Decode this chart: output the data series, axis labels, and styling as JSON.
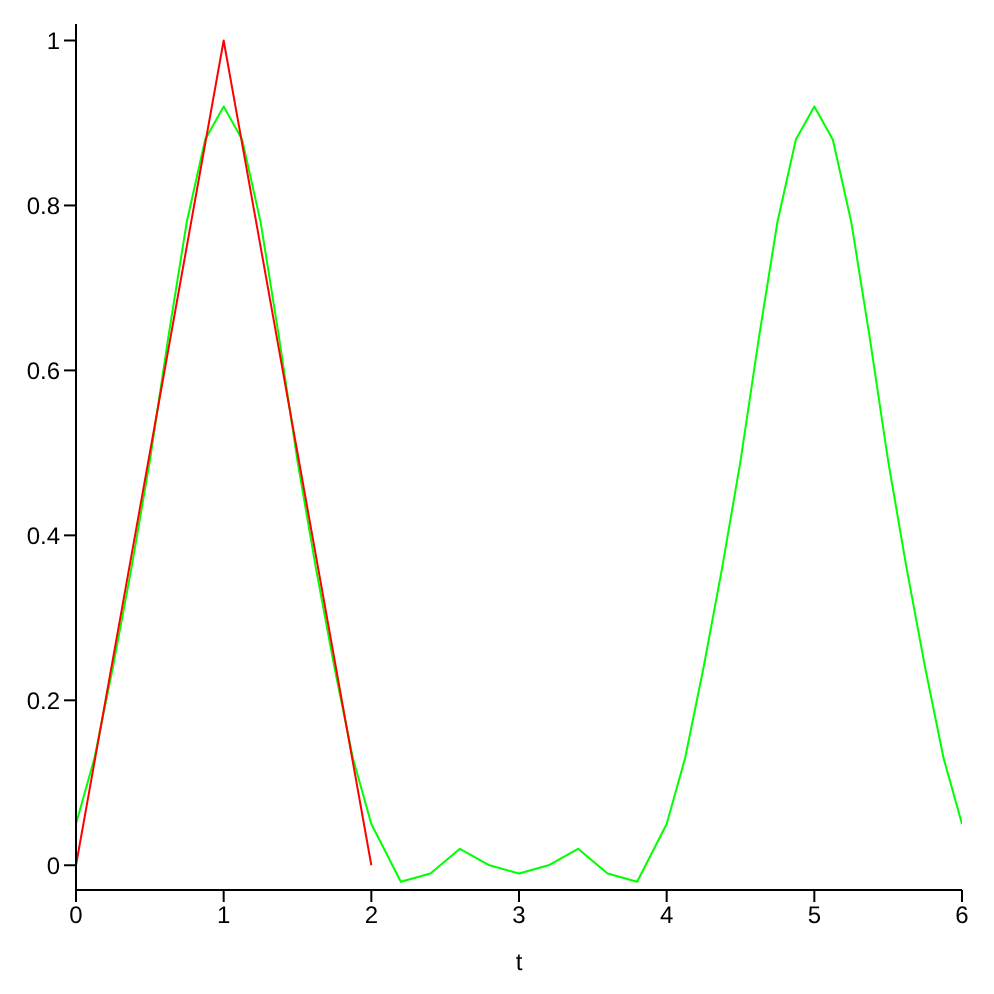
{
  "chart_data": {
    "type": "line",
    "xlabel": "t",
    "xlim": [
      0,
      6
    ],
    "ylim": [
      -0.03,
      1.02
    ],
    "xticks": [
      0,
      1,
      2,
      3,
      4,
      5,
      6
    ],
    "yticks": [
      0,
      0.2,
      0.4,
      0.6,
      0.8,
      1
    ],
    "marker": "none",
    "line_style": "solid",
    "series": [
      {
        "color": "#00ff00",
        "x": [
          0,
          0.125,
          0.25,
          0.375,
          0.5,
          0.625,
          0.75,
          0.875,
          1,
          1.125,
          1.25,
          1.375,
          1.5,
          1.625,
          1.75,
          1.875,
          2,
          2.2,
          2.4,
          2.6,
          2.8,
          3,
          3.2,
          3.4,
          3.6,
          3.8,
          4,
          4.125,
          4.25,
          4.375,
          4.5,
          4.625,
          4.75,
          4.875,
          5,
          5.125,
          5.25,
          5.375,
          5.5,
          5.625,
          5.75,
          5.875,
          6
        ],
        "values": [
          0.05,
          0.13,
          0.24,
          0.36,
          0.49,
          0.64,
          0.78,
          0.88,
          0.92,
          0.88,
          0.78,
          0.64,
          0.49,
          0.36,
          0.24,
          0.13,
          0.05,
          -0.02,
          -0.01,
          0.02,
          0,
          -0.01,
          0,
          0.02,
          -0.01,
          -0.02,
          0.05,
          0.13,
          0.24,
          0.36,
          0.49,
          0.64,
          0.78,
          0.88,
          0.92,
          0.88,
          0.78,
          0.64,
          0.49,
          0.36,
          0.24,
          0.13,
          0.05
        ]
      },
      {
        "color": "#ff0000",
        "x": [
          0,
          1,
          2
        ],
        "values": [
          0,
          1,
          0
        ]
      }
    ]
  }
}
